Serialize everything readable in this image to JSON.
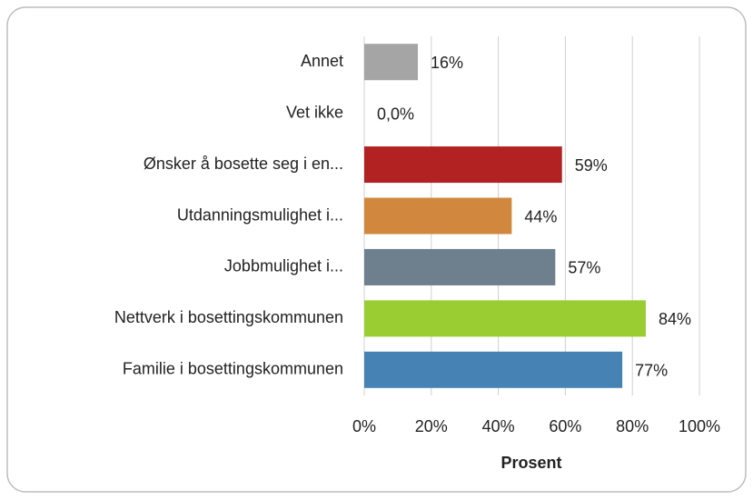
{
  "chart_data": {
    "type": "barh",
    "categories": [
      "Annet",
      "Vet ikke",
      "Ønsker å bosette seg i en...",
      "Utdanningsmulighet i...",
      "Jobbmulighet i...",
      "Nettverk i bosettingskommunen",
      "Familie i bosettingskommunen"
    ],
    "values": [
      16,
      0,
      59,
      44,
      57,
      84,
      77
    ],
    "value_labels": [
      "16%",
      "0,0%",
      "59%",
      "44%",
      "57%",
      "84%",
      "77%"
    ],
    "colors": [
      "#a5a5a5",
      "#a5a5a5",
      "#b22222",
      "#d2873e",
      "#6e7f8e",
      "#9acd32",
      "#4682b4"
    ],
    "xlim": [
      0,
      100
    ],
    "xticks": [
      {
        "value": 0,
        "label": "0%"
      },
      {
        "value": 20,
        "label": "20%"
      },
      {
        "value": 40,
        "label": "40%"
      },
      {
        "value": 60,
        "label": "60%"
      },
      {
        "value": 80,
        "label": "80%"
      },
      {
        "value": 100,
        "label": "100%"
      }
    ],
    "xlabel": "Prosent",
    "grid": true
  }
}
